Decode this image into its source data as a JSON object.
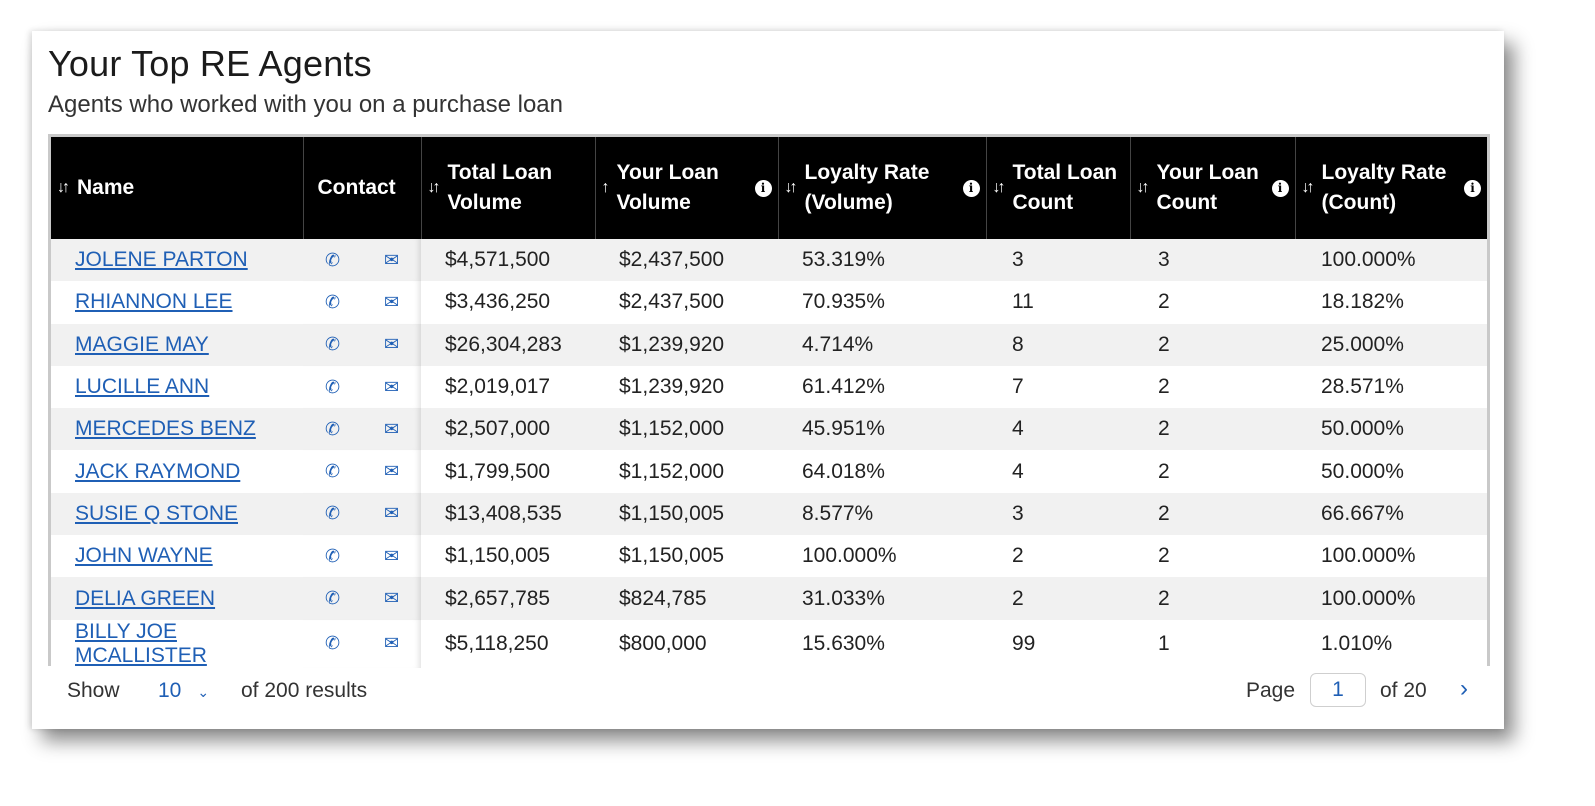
{
  "header": {
    "title": "Your Top RE Agents",
    "subtitle": "Agents who worked with you on a purchase loan"
  },
  "columns": {
    "name": "Name",
    "contact": "Contact",
    "total_volume": "Total Loan Volume",
    "your_volume": "Your Loan Volume",
    "loyalty_volume": "Loyalty Rate (Volume)",
    "total_count": "Total Loan Count",
    "your_count": "Your Loan Count",
    "loyalty_count": "Loyalty Rate (Count)"
  },
  "rows": [
    {
      "name": "JOLENE PARTON",
      "total_volume": "$4,571,500",
      "your_volume": "$2,437,500",
      "loyalty_volume": "53.319%",
      "total_count": "3",
      "your_count": "3",
      "loyalty_count": "100.000%"
    },
    {
      "name": "RHIANNON LEE",
      "total_volume": "$3,436,250",
      "your_volume": "$2,437,500",
      "loyalty_volume": "70.935%",
      "total_count": "11",
      "your_count": "2",
      "loyalty_count": "18.182%"
    },
    {
      "name": "MAGGIE MAY",
      "total_volume": "$26,304,283",
      "your_volume": "$1,239,920",
      "loyalty_volume": "4.714%",
      "total_count": "8",
      "your_count": "2",
      "loyalty_count": "25.000%"
    },
    {
      "name": "LUCILLE ANN",
      "total_volume": "$2,019,017",
      "your_volume": "$1,239,920",
      "loyalty_volume": "61.412%",
      "total_count": "7",
      "your_count": "2",
      "loyalty_count": "28.571%"
    },
    {
      "name": "MERCEDES BENZ",
      "total_volume": "$2,507,000",
      "your_volume": "$1,152,000",
      "loyalty_volume": "45.951%",
      "total_count": "4",
      "your_count": "2",
      "loyalty_count": "50.000%"
    },
    {
      "name": "JACK RAYMOND",
      "total_volume": "$1,799,500",
      "your_volume": "$1,152,000",
      "loyalty_volume": "64.018%",
      "total_count": "4",
      "your_count": "2",
      "loyalty_count": "50.000%"
    },
    {
      "name": "SUSIE Q STONE",
      "total_volume": "$13,408,535",
      "your_volume": "$1,150,005",
      "loyalty_volume": "8.577%",
      "total_count": "3",
      "your_count": "2",
      "loyalty_count": "66.667%"
    },
    {
      "name": "JOHN WAYNE",
      "total_volume": "$1,150,005",
      "your_volume": "$1,150,005",
      "loyalty_volume": "100.000%",
      "total_count": "2",
      "your_count": "2",
      "loyalty_count": "100.000%"
    },
    {
      "name": "DELIA GREEN",
      "total_volume": "$2,657,785",
      "your_volume": "$824,785",
      "loyalty_volume": "31.033%",
      "total_count": "2",
      "your_count": "2",
      "loyalty_count": "100.000%"
    },
    {
      "name": "BILLY JOE MCALLISTER",
      "total_volume": "$5,118,250",
      "your_volume": "$800,000",
      "loyalty_volume": "15.630%",
      "total_count": "99",
      "your_count": "1",
      "loyalty_count": "1.010%"
    }
  ],
  "footer": {
    "show_label": "Show",
    "per_page": "10",
    "results_label": "of 200 results",
    "page_label": "Page",
    "current_page": "1",
    "total_pages_label": "of 20"
  },
  "icons": {
    "sort_both": "sort-icon",
    "sort_asc": "sort-ascending-icon",
    "info": "info-icon",
    "phone": "phone-icon",
    "email": "email-icon",
    "next": "chevron-right-icon",
    "dropdown": "chevron-down-icon"
  },
  "colors": {
    "header_bg": "#000000",
    "link": "#1f5fb5",
    "row_alt": "#f1f1f1"
  }
}
